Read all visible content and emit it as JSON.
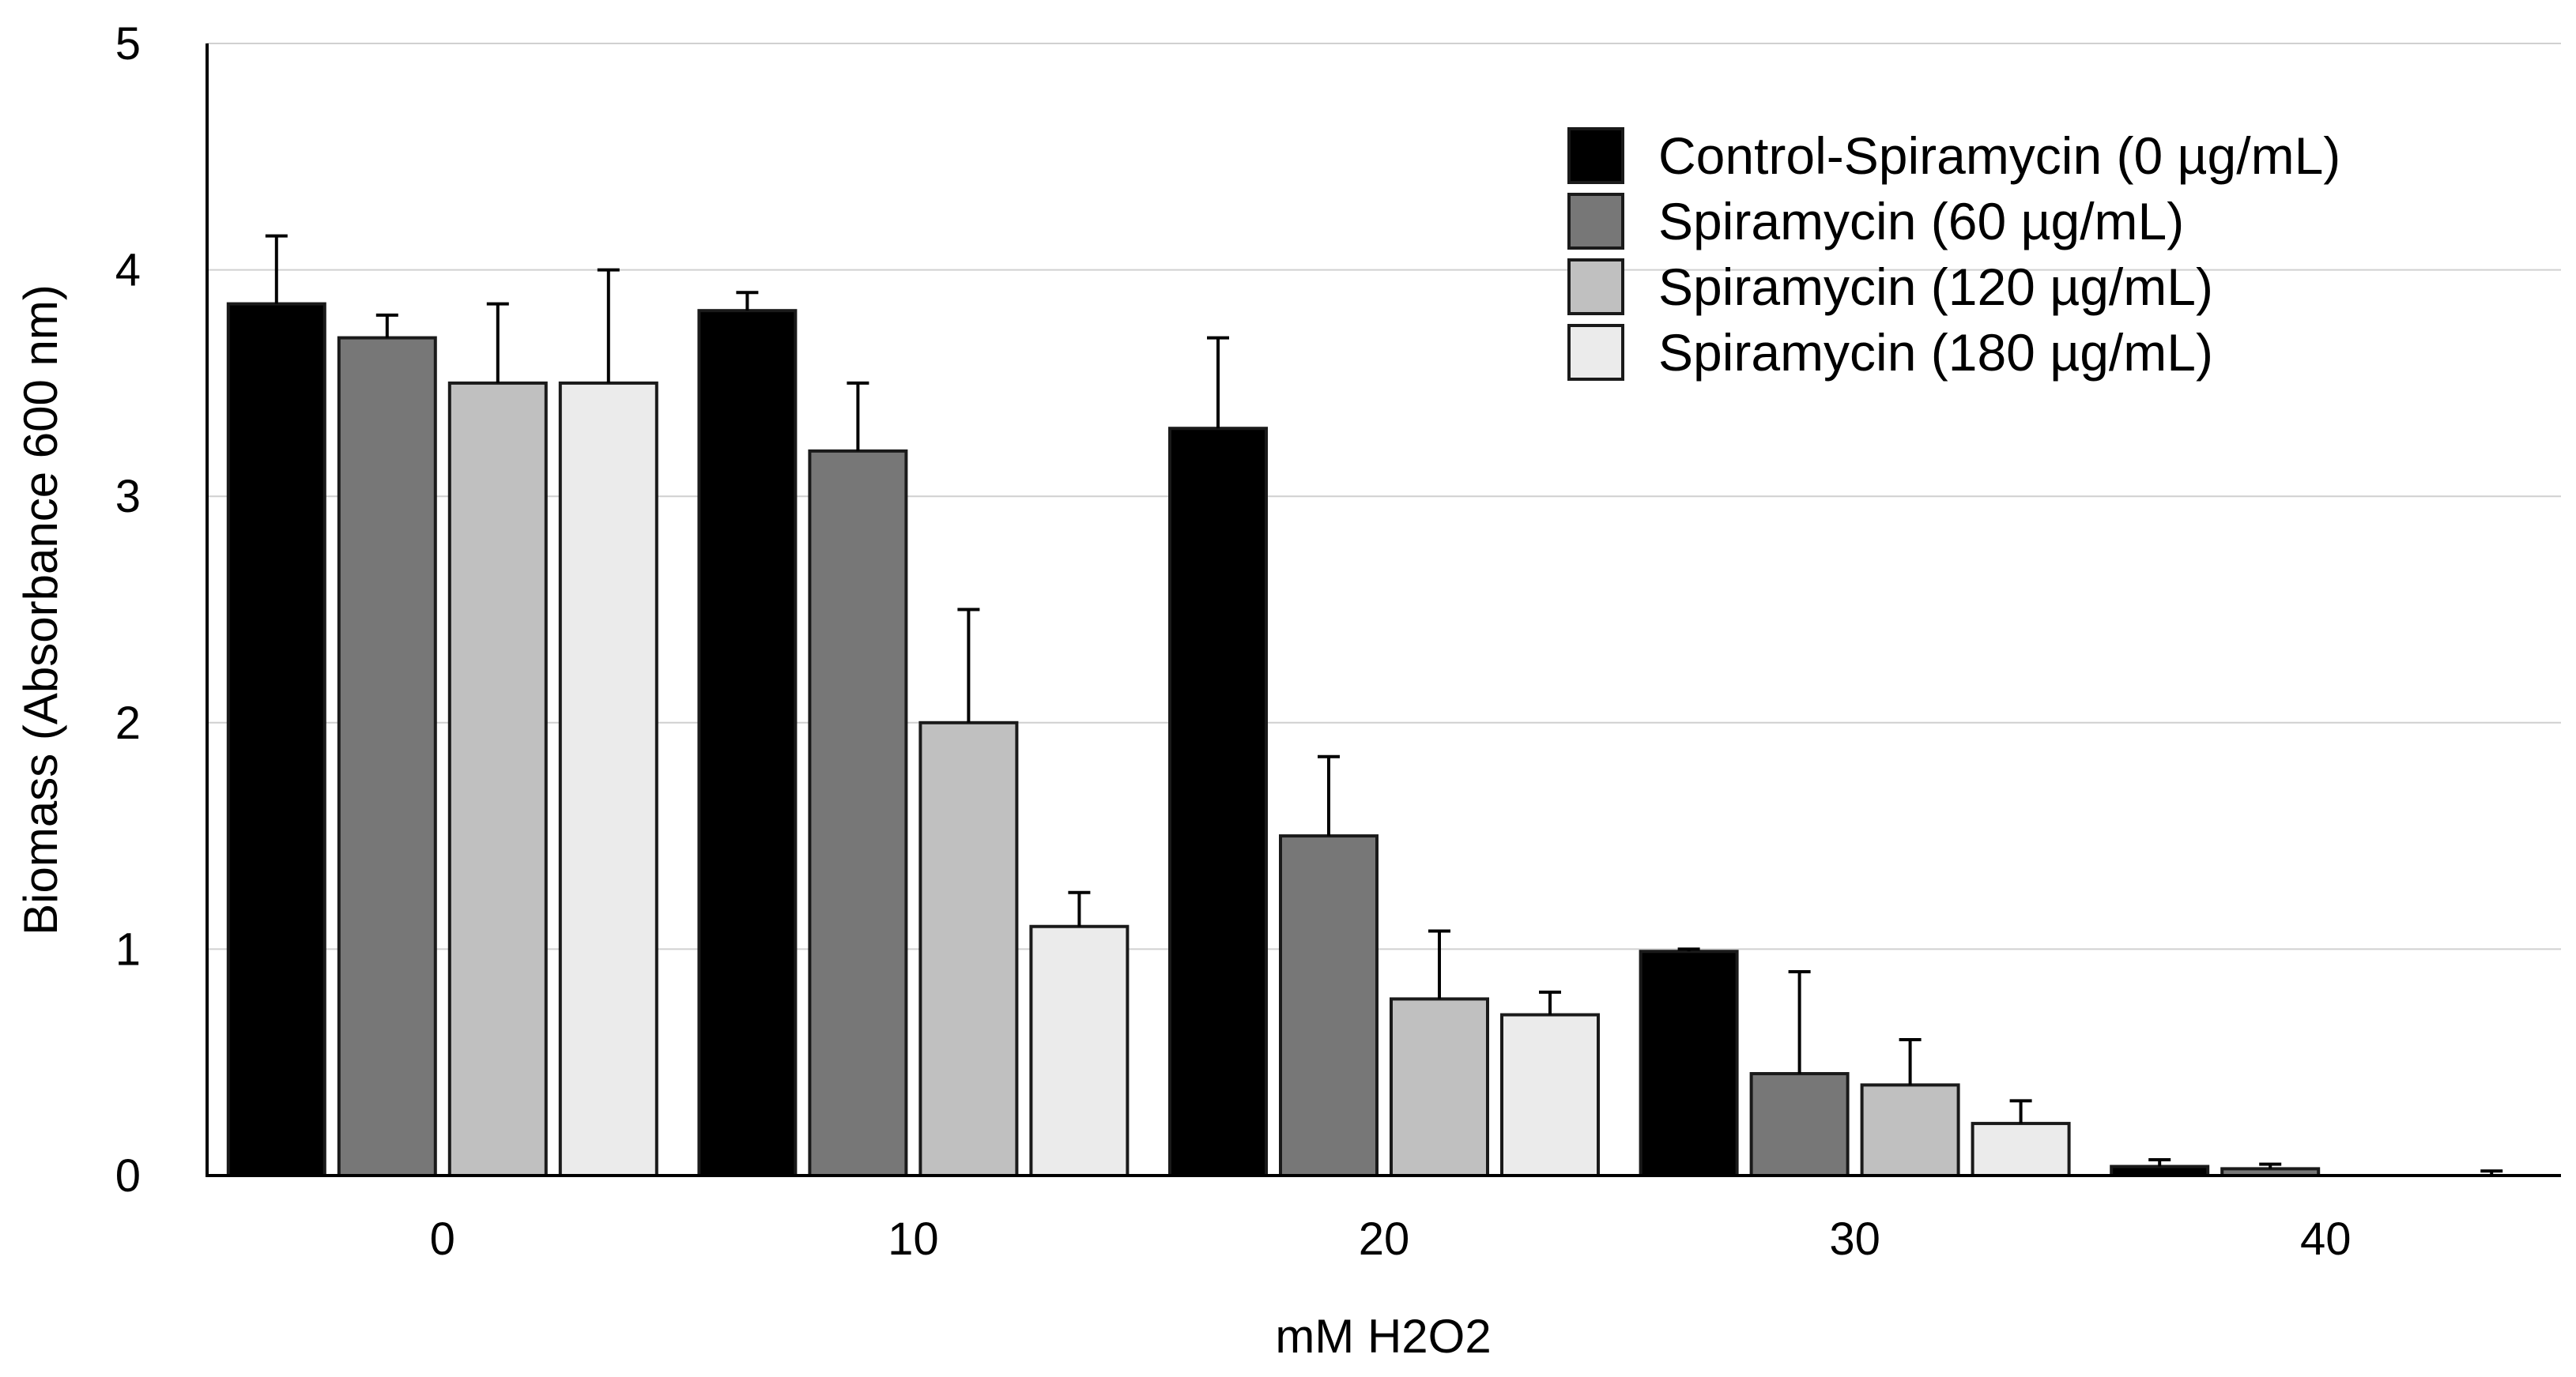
{
  "chart_data": {
    "type": "bar",
    "title": "",
    "xlabel": "mM H2O2",
    "ylabel": "Biomass (Absorbance 600 nm)",
    "ylim": [
      0,
      5
    ],
    "yticks": [
      0,
      1,
      2,
      3,
      4,
      5
    ],
    "grid": true,
    "legend_position": "top-right",
    "categories": [
      "0",
      "10",
      "20",
      "30",
      "40"
    ],
    "series": [
      {
        "name": "Control-Spiramycin (0  µg/mL)",
        "color": "#000000",
        "values": [
          3.85,
          3.82,
          3.3,
          0.99,
          0.04
        ],
        "errors": [
          0.3,
          0.08,
          0.4,
          0.01,
          0.03
        ]
      },
      {
        "name": "Spiramycin (60 µg/mL)",
        "color": "#777777",
        "values": [
          3.7,
          3.2,
          1.5,
          0.45,
          0.03
        ],
        "errors": [
          0.1,
          0.3,
          0.35,
          0.45,
          0.02
        ]
      },
      {
        "name": "Spiramycin (120 µg/mL)",
        "color": "#c0c0c0",
        "values": [
          3.5,
          2.0,
          0.78,
          0.4,
          0.0
        ],
        "errors": [
          0.35,
          0.5,
          0.3,
          0.2,
          0.0
        ]
      },
      {
        "name": "Spiramycin (180 µg/mL)",
        "color": "#ebebeb",
        "values": [
          3.5,
          1.1,
          0.71,
          0.23,
          0.0
        ],
        "errors": [
          0.5,
          0.15,
          0.1,
          0.1,
          0.02
        ]
      }
    ]
  }
}
